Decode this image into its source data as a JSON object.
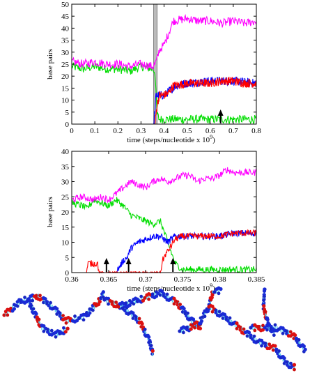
{
  "colors": {
    "magenta": "#ff00ff",
    "green": "#00dd00",
    "red": "#ff0000",
    "blue": "#0000ff",
    "shade": "#bbbbbb"
  },
  "chart_data": [
    {
      "type": "line",
      "xlabel": "time (steps/nucleotide x 10",
      "xlabel_sup": "9",
      "xlabel_end": ")",
      "ylabel": "base pairs",
      "xlim": [
        0,
        0.8
      ],
      "ylim": [
        0,
        50
      ],
      "xticks": [
        0,
        0.1,
        0.2,
        0.3,
        0.4,
        0.5,
        0.6,
        0.7,
        0.8
      ],
      "xtick_labels": [
        "0",
        "0.1",
        "0.2",
        "0.3",
        "0.4",
        "0.5",
        "0.6",
        "0.7",
        "0.8"
      ],
      "yticks": [
        0,
        5,
        10,
        15,
        20,
        25,
        30,
        35,
        40,
        45,
        50
      ],
      "ytick_labels": [
        "0",
        "5",
        "10",
        "15",
        "20",
        "25",
        "30",
        "35",
        "40",
        "45",
        "50"
      ],
      "shaded_x": [
        0.355,
        0.37
      ],
      "arrows_x": [
        0.645
      ],
      "series": [
        {
          "color": "magenta",
          "points": [
            [
              0,
              26
            ],
            [
              0.05,
              25
            ],
            [
              0.1,
              26
            ],
            [
              0.15,
              25
            ],
            [
              0.2,
              25
            ],
            [
              0.25,
              24
            ],
            [
              0.3,
              25
            ],
            [
              0.35,
              24
            ],
            [
              0.36,
              25
            ],
            [
              0.37,
              27
            ],
            [
              0.38,
              31
            ],
            [
              0.4,
              33
            ],
            [
              0.42,
              38
            ],
            [
              0.44,
              43
            ],
            [
              0.5,
              44
            ],
            [
              0.55,
              43
            ],
            [
              0.6,
              43
            ],
            [
              0.65,
              42
            ],
            [
              0.7,
              43
            ],
            [
              0.75,
              42
            ],
            [
              0.8,
              43
            ]
          ]
        },
        {
          "color": "green",
          "points": [
            [
              0,
              24
            ],
            [
              0.05,
              23
            ],
            [
              0.1,
              24
            ],
            [
              0.15,
              23
            ],
            [
              0.2,
              23
            ],
            [
              0.25,
              22
            ],
            [
              0.3,
              24
            ],
            [
              0.35,
              23
            ],
            [
              0.36,
              22
            ],
            [
              0.37,
              4
            ],
            [
              0.38,
              2
            ],
            [
              0.4,
              2
            ],
            [
              0.5,
              2
            ],
            [
              0.6,
              2
            ],
            [
              0.7,
              2
            ],
            [
              0.8,
              2
            ]
          ]
        },
        {
          "color": "red",
          "points": [
            [
              0.36,
              0
            ],
            [
              0.37,
              8
            ],
            [
              0.38,
              12
            ],
            [
              0.4,
              12
            ],
            [
              0.42,
              13
            ],
            [
              0.44,
              16
            ],
            [
              0.5,
              17
            ],
            [
              0.55,
              17
            ],
            [
              0.6,
              17
            ],
            [
              0.65,
              18
            ],
            [
              0.7,
              18
            ],
            [
              0.75,
              17
            ],
            [
              0.8,
              17
            ]
          ]
        },
        {
          "color": "blue",
          "points": [
            [
              0.355,
              0
            ],
            [
              0.36,
              5
            ],
            [
              0.365,
              12
            ],
            [
              0.37,
              12
            ],
            [
              0.4,
              12
            ],
            [
              0.45,
              16
            ],
            [
              0.5,
              17
            ],
            [
              0.6,
              18
            ],
            [
              0.7,
              18
            ],
            [
              0.8,
              17
            ]
          ]
        }
      ]
    },
    {
      "type": "line",
      "xlabel": "time (steps/nucleotide x 10",
      "xlabel_sup": "9",
      "xlabel_end": ")",
      "ylabel": "base pairs",
      "xlim": [
        0.36,
        0.385
      ],
      "ylim": [
        0,
        40
      ],
      "xticks": [
        0.36,
        0.365,
        0.37,
        0.375,
        0.38,
        0.385
      ],
      "xtick_labels": [
        "0.36",
        "0.365",
        "0.37",
        "0.375",
        "0.38",
        "0.385"
      ],
      "yticks": [
        0,
        5,
        10,
        15,
        20,
        25,
        30,
        35,
        40
      ],
      "ytick_labels": [
        "0",
        "5",
        "10",
        "15",
        "20",
        "25",
        "30",
        "35",
        "40"
      ],
      "arrows_x": [
        0.3647,
        0.3677,
        0.3737
      ],
      "series": [
        {
          "color": "magenta",
          "points": [
            [
              0.36,
              24
            ],
            [
              0.3615,
              25
            ],
            [
              0.363,
              24
            ],
            [
              0.364,
              25
            ],
            [
              0.365,
              24
            ],
            [
              0.366,
              26
            ],
            [
              0.367,
              28
            ],
            [
              0.368,
              30
            ],
            [
              0.369,
              29
            ],
            [
              0.37,
              28
            ],
            [
              0.371,
              30
            ],
            [
              0.372,
              31
            ],
            [
              0.373,
              30
            ],
            [
              0.374,
              31
            ],
            [
              0.375,
              32
            ],
            [
              0.376,
              32
            ],
            [
              0.377,
              30
            ],
            [
              0.378,
              31
            ],
            [
              0.379,
              31
            ],
            [
              0.38,
              32
            ],
            [
              0.381,
              34
            ],
            [
              0.382,
              33
            ],
            [
              0.383,
              33
            ],
            [
              0.385,
              33
            ]
          ]
        },
        {
          "color": "green",
          "points": [
            [
              0.36,
              23
            ],
            [
              0.3615,
              22
            ],
            [
              0.362,
              21
            ],
            [
              0.363,
              24
            ],
            [
              0.364,
              23
            ],
            [
              0.365,
              22
            ],
            [
              0.366,
              24
            ],
            [
              0.367,
              22
            ],
            [
              0.368,
              19
            ],
            [
              0.369,
              18
            ],
            [
              0.37,
              17
            ],
            [
              0.371,
              16
            ],
            [
              0.372,
              17
            ],
            [
              0.373,
              10
            ],
            [
              0.374,
              3
            ],
            [
              0.375,
              1
            ],
            [
              0.376,
              1
            ],
            [
              0.377,
              1
            ],
            [
              0.378,
              1
            ],
            [
              0.38,
              1
            ],
            [
              0.382,
              1
            ],
            [
              0.385,
              1
            ]
          ]
        },
        {
          "color": "red",
          "points": [
            [
              0.362,
              0
            ],
            [
              0.3622,
              3
            ],
            [
              0.3635,
              3
            ],
            [
              0.3637,
              0
            ],
            [
              0.372,
              0
            ],
            [
              0.3723,
              4
            ],
            [
              0.3727,
              6
            ],
            [
              0.373,
              7
            ],
            [
              0.374,
              11
            ],
            [
              0.375,
              12
            ],
            [
              0.378,
              12
            ],
            [
              0.38,
              12
            ],
            [
              0.382,
              13
            ],
            [
              0.385,
              13
            ]
          ]
        },
        {
          "color": "blue",
          "points": [
            [
              0.366,
              0
            ],
            [
              0.3665,
              2
            ],
            [
              0.367,
              4
            ],
            [
              0.3675,
              5
            ],
            [
              0.368,
              8
            ],
            [
              0.369,
              10
            ],
            [
              0.37,
              11
            ],
            [
              0.371,
              12
            ],
            [
              0.372,
              12
            ],
            [
              0.373,
              10
            ],
            [
              0.374,
              12
            ],
            [
              0.376,
              12
            ],
            [
              0.378,
              12
            ],
            [
              0.38,
              12
            ],
            [
              0.382,
              13
            ],
            [
              0.385,
              13
            ]
          ]
        }
      ]
    }
  ],
  "snapshots": [
    {
      "name": "snapshot-1"
    },
    {
      "name": "snapshot-2"
    },
    {
      "name": "snapshot-3"
    },
    {
      "name": "snapshot-4"
    }
  ]
}
